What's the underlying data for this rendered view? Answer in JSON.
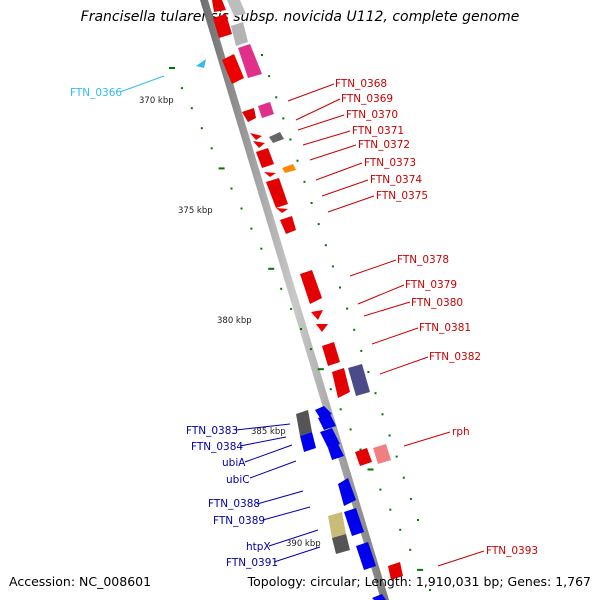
{
  "title": "Francisella tularensis subsp. novicida U112, complete genome",
  "accession": "Accession: NC_008601",
  "summary": "Topology: circular; Length: 1,910,031 bp; Genes: 1,767",
  "colors": {
    "label_red": "#cc0000",
    "label_blue": "#0000aa",
    "label_cyan": "#33bbee",
    "tick": "#007700",
    "axis": "#999999"
  },
  "scale_labels": [
    "370 kbp",
    "375 kbp",
    "380 kbp",
    "385 kbp",
    "390 kbp"
  ],
  "right_labels": [
    "FTN_0368",
    "FTN_0369",
    "FTN_0370",
    "FTN_0371",
    "FTN_0372",
    "FTN_0373",
    "FTN_0374",
    "FTN_0375",
    "FTN_0378",
    "FTN_0379",
    "FTN_0380",
    "FTN_0381",
    "FTN_0382",
    "rph",
    "FTN_0393"
  ],
  "left_labels": [
    "FTN_0383",
    "FTN_0384",
    "ubiA",
    "ubiC",
    "FTN_0388",
    "FTN_0389",
    "htpX",
    "FTN_0391"
  ],
  "cyan_labels": [
    "FTN_0366"
  ]
}
